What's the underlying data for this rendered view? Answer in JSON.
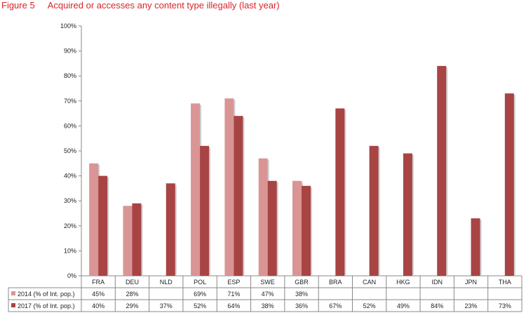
{
  "figure": {
    "number": "Figure 5",
    "title": "Acquired or accesses any content type illegally (last year)"
  },
  "colors": {
    "series_2014": "#d99594",
    "series_2017": "#a94444",
    "title": "#d8232a"
  },
  "chart_data": {
    "type": "bar",
    "title": "Acquired or accesses any content type illegally (last year)",
    "categories": [
      "FRA",
      "DEU",
      "NLD",
      "POL",
      "ESP",
      "SWE",
      "GBR",
      "BRA",
      "CAN",
      "HKG",
      "IDN",
      "JPN",
      "THA"
    ],
    "series": [
      {
        "name": "2014 (% of Int. pop.)",
        "values": [
          45,
          28,
          null,
          69,
          71,
          47,
          38,
          null,
          null,
          null,
          null,
          null,
          null
        ],
        "labels": [
          "45%",
          "28%",
          "",
          "69%",
          "71%",
          "47%",
          "38%",
          "",
          "",
          "",
          "",
          "",
          ""
        ]
      },
      {
        "name": "2017 (% of Int. pop.)",
        "values": [
          40,
          29,
          37,
          52,
          64,
          38,
          36,
          67,
          52,
          49,
          84,
          23,
          73
        ],
        "labels": [
          "40%",
          "29%",
          "37%",
          "52%",
          "64%",
          "38%",
          "36%",
          "67%",
          "52%",
          "49%",
          "84%",
          "23%",
          "73%"
        ]
      }
    ],
    "ylim": [
      0,
      100
    ],
    "yticks": [
      "0%",
      "10%",
      "20%",
      "30%",
      "40%",
      "50%",
      "60%",
      "70%",
      "80%",
      "90%",
      "100%"
    ],
    "grid": false,
    "legend": "data-table"
  }
}
